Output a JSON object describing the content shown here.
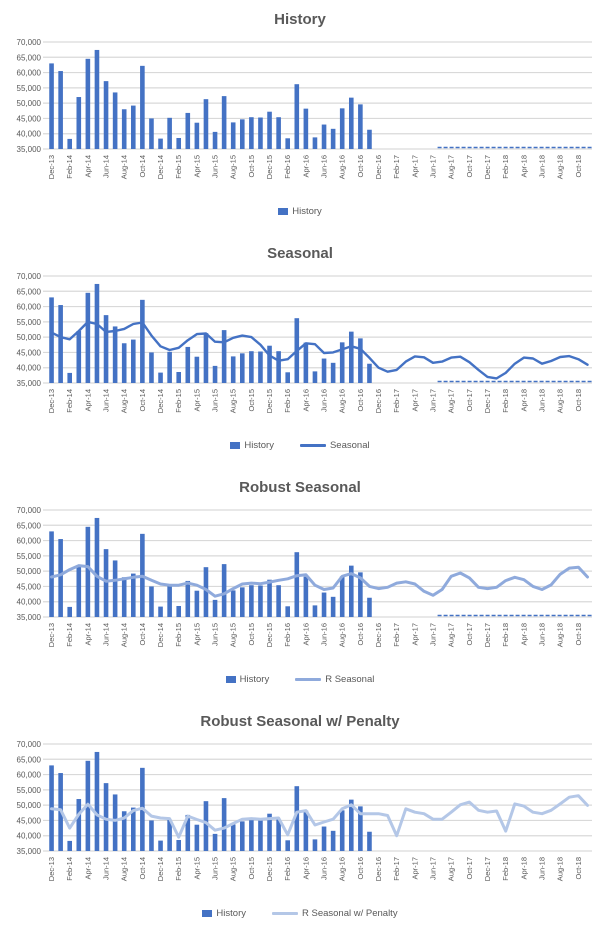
{
  "page": {
    "background": "#ffffff"
  },
  "charts_common": {
    "y_min": 35000,
    "y_max": 70000,
    "y_step": 5000,
    "y_tick_labels": [
      "70,000",
      "65,000",
      "60,000",
      "55,000",
      "50,000",
      "45,000",
      "40,000",
      "35,000"
    ],
    "grid_color": "#D9D9D9",
    "text_color": "#595959",
    "months": [
      "Dec-13",
      "Jan-14",
      "Feb-14",
      "Mar-14",
      "Apr-14",
      "May-14",
      "Jun-14",
      "Jul-14",
      "Aug-14",
      "Sep-14",
      "Oct-14",
      "Nov-14",
      "Dec-14",
      "Jan-15",
      "Feb-15",
      "Mar-15",
      "Apr-15",
      "May-15",
      "Jun-15",
      "Jul-15",
      "Aug-15",
      "Sep-15",
      "Oct-15",
      "Nov-15",
      "Dec-15",
      "Jan-16",
      "Feb-16",
      "Mar-16",
      "Apr-16",
      "May-16",
      "Jun-16",
      "Jul-16",
      "Aug-16",
      "Sep-16",
      "Oct-16",
      "Nov-16",
      "Dec-16",
      "Jan-17",
      "Feb-17",
      "Mar-17",
      "Apr-17",
      "May-17",
      "Jun-17",
      "Jul-17",
      "Aug-17",
      "Sep-17",
      "Oct-17",
      "Nov-17",
      "Dec-17",
      "Jan-18",
      "Feb-18",
      "Mar-18",
      "Apr-18",
      "May-18",
      "Jun-18",
      "Jul-18",
      "Aug-18",
      "Sep-18",
      "Oct-18",
      "Nov-18"
    ],
    "x_tick_labels": [
      "Dec-13",
      "Feb-14",
      "Apr-14",
      "Jun-14",
      "Aug-14",
      "Oct-14",
      "Dec-14",
      "Feb-15",
      "Apr-15",
      "Jun-15",
      "Aug-15",
      "Oct-15",
      "Dec-15",
      "Feb-16",
      "Apr-16",
      "Jun-16",
      "Aug-16",
      "Oct-16",
      "Dec-16",
      "Feb-17",
      "Apr-17",
      "Jun-17",
      "Aug-17",
      "Oct-17",
      "Dec-17",
      "Feb-18",
      "Apr-18",
      "Jun-18",
      "Aug-18",
      "Oct-18"
    ]
  },
  "chart_data": [
    {
      "type": "bar",
      "title": "History",
      "xlabel": "",
      "ylabel": "",
      "ylim": [
        35000,
        70000
      ],
      "grid": true,
      "legend_position": "bottom",
      "legend": [
        {
          "label": "History",
          "swatch": "bar",
          "color": "#4472C4"
        }
      ],
      "series": [
        {
          "name": "History",
          "type": "bar",
          "color": "#4472C4",
          "start_month": "Dec-13",
          "values": [
            63000,
            60500,
            38300,
            52000,
            64500,
            67400,
            57200,
            53500,
            48000,
            49200,
            62200,
            45000,
            38400,
            45200,
            38600,
            46800,
            43600,
            51300,
            40600,
            52300,
            43700,
            44700,
            45400,
            45300,
            47200,
            45400,
            38500,
            56200,
            48200,
            38800,
            43000,
            41600,
            48300,
            51800,
            49600,
            41300
          ]
        }
      ],
      "floor_dash": {
        "start_month": "Jul-17",
        "end_month": "Nov-18",
        "value": 35000,
        "color": "#4472C4"
      }
    },
    {
      "type": "bar+line",
      "title": "Seasonal",
      "xlabel": "",
      "ylabel": "",
      "ylim": [
        35000,
        70000
      ],
      "grid": true,
      "legend_position": "bottom",
      "legend": [
        {
          "label": "History",
          "swatch": "bar",
          "color": "#4472C4"
        },
        {
          "label": "Seasonal",
          "swatch": "line",
          "color": "#4472C4"
        }
      ],
      "series": [
        {
          "name": "History",
          "type": "bar",
          "color": "#4472C4",
          "start_month": "Dec-13",
          "values": [
            63000,
            60500,
            38300,
            52000,
            64500,
            67400,
            57200,
            53500,
            48000,
            49200,
            62200,
            45000,
            38400,
            45200,
            38600,
            46800,
            43600,
            51300,
            40600,
            52300,
            43700,
            44700,
            45400,
            45300,
            47200,
            45400,
            38500,
            56200,
            48200,
            38800,
            43000,
            41600,
            48300,
            51800,
            49600,
            41300
          ]
        },
        {
          "name": "Seasonal",
          "type": "line",
          "color": "#4472C4",
          "width": 2.4,
          "start_month": "Dec-13",
          "values": [
            51500,
            50000,
            49300,
            52000,
            55000,
            54300,
            51700,
            52000,
            52700,
            54300,
            54800,
            50500,
            47000,
            45800,
            46500,
            49000,
            51000,
            51200,
            48500,
            48300,
            49800,
            50500,
            50000,
            47500,
            44000,
            42300,
            42800,
            45500,
            48000,
            47700,
            44800,
            45000,
            46000,
            47000,
            46200,
            43200,
            40000,
            38700,
            39300,
            42000,
            43700,
            43400,
            41600,
            42000,
            43300,
            43600,
            41800,
            39300,
            37000,
            36500,
            38300,
            41300,
            43300,
            43000,
            41300,
            42200,
            43500,
            43800,
            42800,
            41000
          ]
        }
      ],
      "floor_dash": {
        "start_month": "Jul-17",
        "end_month": "Nov-18",
        "value": 35000,
        "color": "#4472C4"
      }
    },
    {
      "type": "bar+line",
      "title": "Robust Seasonal",
      "xlabel": "",
      "ylabel": "",
      "ylim": [
        35000,
        70000
      ],
      "grid": true,
      "legend_position": "bottom",
      "legend": [
        {
          "label": "History",
          "swatch": "bar",
          "color": "#4472C4"
        },
        {
          "label": "R Seasonal",
          "swatch": "line",
          "color": "#8FAADC"
        }
      ],
      "series": [
        {
          "name": "History",
          "type": "bar",
          "color": "#4472C4",
          "start_month": "Dec-13",
          "values": [
            63000,
            60500,
            38300,
            52000,
            64500,
            67400,
            57200,
            53500,
            48000,
            49200,
            62200,
            45000,
            38400,
            45200,
            38600,
            46800,
            43600,
            51300,
            40600,
            52300,
            43700,
            44700,
            45400,
            45300,
            47200,
            45400,
            38500,
            56200,
            48200,
            38800,
            43000,
            41600,
            48300,
            51800,
            49600,
            41300
          ]
        },
        {
          "name": "R Seasonal",
          "type": "line",
          "color": "#8FAADC",
          "width": 3,
          "start_month": "Dec-13",
          "values": [
            48100,
            48800,
            50500,
            51800,
            51500,
            48300,
            46700,
            47000,
            47500,
            48000,
            48300,
            47000,
            45800,
            45400,
            45400,
            46100,
            45400,
            44000,
            41800,
            42600,
            44300,
            45800,
            46100,
            45900,
            46400,
            47000,
            47500,
            48500,
            48800,
            45400,
            44000,
            44500,
            48300,
            49200,
            47800,
            45000,
            44300,
            44700,
            46100,
            46500,
            45800,
            43400,
            42100,
            44000,
            48300,
            49400,
            47800,
            44700,
            44300,
            44700,
            46900,
            48000,
            47200,
            45000,
            44000,
            45500,
            49000,
            51000,
            51300,
            48100
          ]
        }
      ],
      "floor_dash": {
        "start_month": "Jul-17",
        "end_month": "Nov-18",
        "value": 35000,
        "color": "#4472C4"
      }
    },
    {
      "type": "bar+line",
      "title": "Robust Seasonal w/ Penalty",
      "xlabel": "",
      "ylabel": "",
      "ylim": [
        35000,
        70000
      ],
      "grid": true,
      "legend_position": "bottom",
      "legend": [
        {
          "label": "History",
          "swatch": "bar",
          "color": "#4472C4"
        },
        {
          "label": "R Seasonal w/ Penalty",
          "swatch": "line",
          "color": "#B4C7E7"
        }
      ],
      "series": [
        {
          "name": "History",
          "type": "bar",
          "color": "#4472C4",
          "start_month": "Dec-13",
          "values": [
            63000,
            60500,
            38300,
            52000,
            64500,
            67400,
            57200,
            53500,
            48000,
            49200,
            62200,
            45000,
            38400,
            45200,
            38600,
            46800,
            43600,
            51300,
            40600,
            52300,
            43700,
            44700,
            45400,
            45300,
            47200,
            45400,
            38500,
            56200,
            48200,
            38800,
            43000,
            41600,
            48300,
            51800,
            49600,
            41300
          ]
        },
        {
          "name": "R Seasonal w/ Penalty",
          "type": "line",
          "color": "#B4C7E7",
          "width": 3,
          "start_month": "Dec-13",
          "values": [
            48800,
            48500,
            42500,
            47000,
            50300,
            46800,
            45400,
            45000,
            45800,
            48200,
            49000,
            46400,
            45800,
            45600,
            39500,
            46400,
            45300,
            44300,
            41800,
            42500,
            44000,
            45400,
            45600,
            45400,
            45600,
            45800,
            40300,
            47700,
            48200,
            43500,
            44500,
            45400,
            48800,
            50100,
            47200,
            47200,
            47200,
            46600,
            40000,
            48800,
            47700,
            47200,
            45400,
            45400,
            47700,
            50100,
            51000,
            48300,
            47700,
            48100,
            41500,
            50400,
            49700,
            47700,
            47200,
            48300,
            50400,
            52600,
            53100,
            49900
          ]
        }
      ],
      "floor_dash": null
    }
  ]
}
